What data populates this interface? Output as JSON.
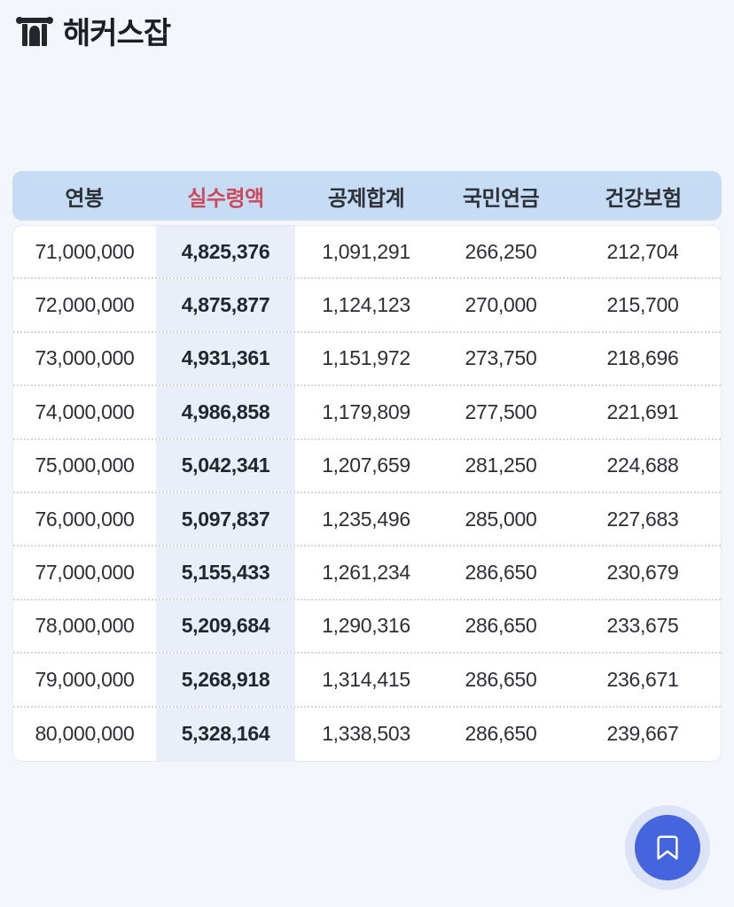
{
  "page": {
    "background_color": "#f3f6fb"
  },
  "logo": {
    "icon": "hackers-gate-icon",
    "text": "해커스잡",
    "color": "#1b1e24"
  },
  "table": {
    "header_bg_color": "#c6dcf5",
    "accent_color": "#cb4b5c",
    "highlight_column_bg": "#e9eef8",
    "accent_header_index": 1,
    "highlight_column_index": 1,
    "headers": [
      "연봉",
      "실수령액",
      "공제합계",
      "국민연금",
      "건강보험"
    ],
    "rows": [
      [
        "71,000,000",
        "4,825,376",
        "1,091,291",
        "266,250",
        "212,704"
      ],
      [
        "72,000,000",
        "4,875,877",
        "1,124,123",
        "270,000",
        "215,700"
      ],
      [
        "73,000,000",
        "4,931,361",
        "1,151,972",
        "273,750",
        "218,696"
      ],
      [
        "74,000,000",
        "4,986,858",
        "1,179,809",
        "277,500",
        "221,691"
      ],
      [
        "75,000,000",
        "5,042,341",
        "1,207,659",
        "281,250",
        "224,688"
      ],
      [
        "76,000,000",
        "5,097,837",
        "1,235,496",
        "285,000",
        "227,683"
      ],
      [
        "77,000,000",
        "5,155,433",
        "1,261,234",
        "286,650",
        "230,679"
      ],
      [
        "78,000,000",
        "5,209,684",
        "1,290,316",
        "286,650",
        "233,675"
      ],
      [
        "79,000,000",
        "5,268,918",
        "1,314,415",
        "286,650",
        "236,671"
      ],
      [
        "80,000,000",
        "5,328,164",
        "1,338,503",
        "286,650",
        "239,667"
      ]
    ]
  },
  "fab": {
    "icon": "bookmark-icon",
    "color": "#4565de"
  }
}
